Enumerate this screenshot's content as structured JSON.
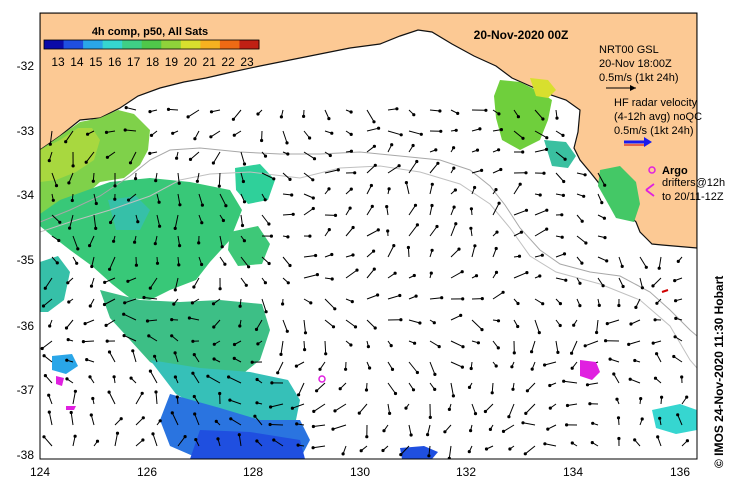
{
  "colorbar": {
    "title": "4h comp, p50, All Sats",
    "tick_labels": [
      "13",
      "14",
      "15",
      "16",
      "17",
      "18",
      "19",
      "20",
      "21",
      "22",
      "23"
    ],
    "colors": [
      "#0a0aa8",
      "#1f4fe0",
      "#2aa6e8",
      "#36d6d0",
      "#3fcf86",
      "#4fc74a",
      "#8fd23a",
      "#d8df2e",
      "#f6b220",
      "#ee6a14",
      "#c02014"
    ]
  },
  "date_title": "20-Nov-2020 00Z",
  "legend": {
    "nrt_line1": "NRT00 GSL",
    "nrt_line2": "20-Nov 18:00Z",
    "nrt_line3": "0.5m/s (1kt 24h)",
    "hf_line1": "HF radar velocity",
    "hf_line2": "(4-12h avg) noQC",
    "hf_line3": "0.5m/s (1kt 24h)",
    "argo_label": "Argo",
    "drifters_line1": "drifters@12h",
    "drifters_line2": "to 20/11-12Z"
  },
  "x_ticks": [
    "124",
    "126",
    "128",
    "130",
    "132",
    "134",
    "136"
  ],
  "y_ticks": [
    "-32",
    "-33",
    "-34",
    "-35",
    "-36",
    "-37",
    "-38"
  ],
  "credit": "© IMOS 24-Nov-2020 11:30 Hobart",
  "map_colors": {
    "land": "#fcc994",
    "coast": "#111111",
    "isobath": "#a8a8a8",
    "argo": "#e020e0",
    "hf_radar": "#1a1aee"
  }
}
